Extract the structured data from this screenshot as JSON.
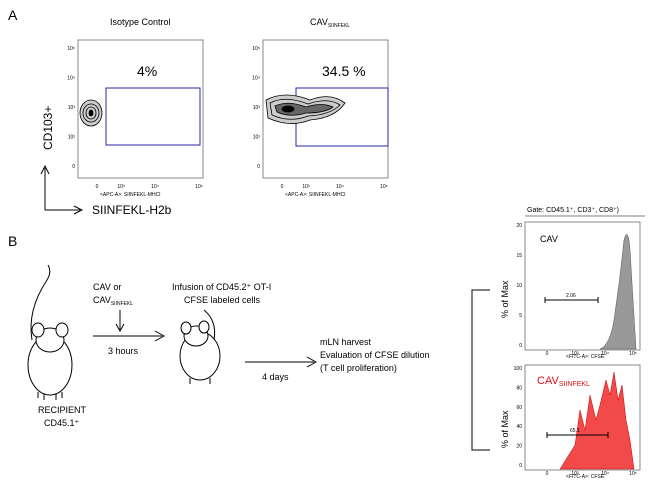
{
  "panel_a": {
    "label": "A",
    "y_axis_label": "CD103+",
    "x_axis_label": "SIINFEKL-H2b",
    "y_ticks": [
      "10⁵",
      "10⁴",
      "10³",
      "10²",
      "0"
    ],
    "x_ticks": [
      "0",
      "10³",
      "10⁴",
      "10⁵"
    ],
    "plots": [
      {
        "title": "Isotype Control",
        "gate_percent": "4%",
        "x_axis_label": "<APC-A>: SIINFEKL-MHCI"
      },
      {
        "title": "CAV",
        "title_subscript": "SIINFEKL",
        "gate_percent": "34.5 %",
        "x_axis_label": "<APC-A>: SIINFEKL-MHCI"
      }
    ]
  },
  "panel_b": {
    "label": "B",
    "recipient": [
      "RECIPIENT",
      "CD45.1⁺"
    ],
    "treatment": {
      "line1": "CAV or",
      "line2": "CAV",
      "line2_subscript": "SIINFEKL"
    },
    "time1": "3 hours",
    "infusion": [
      "Infusion of CD45.2⁺ OT-I",
      "CFSE labeled cells"
    ],
    "time2": "4 days",
    "harvest": [
      "mLN harvest",
      "Evaluation of CFSE dilution",
      "(T cell proliferation)"
    ],
    "gate": "Gate: CD45.1⁺, CD3⁺, CD8⁺)",
    "histograms": [
      {
        "title": "CAV",
        "y_axis_label": "% of Max",
        "y_ticks": [
          20,
          15,
          10,
          5,
          0
        ],
        "x_ticks": [
          "0",
          "10³",
          "10⁴",
          "10⁵"
        ],
        "range_value": 2.06,
        "x_axis_label": "<FITC-A>: CFSE"
      },
      {
        "title": "CAV",
        "title_subscript": "SIINFEKL",
        "y_axis_label": "% of Max",
        "y_ticks": [
          100,
          80,
          60,
          40,
          20,
          0
        ],
        "x_ticks": [
          "0",
          "10³",
          "10⁴",
          "10⁵"
        ],
        "range_value": 65.1,
        "x_axis_label": "<FITC-A>: CFSE"
      }
    ]
  }
}
